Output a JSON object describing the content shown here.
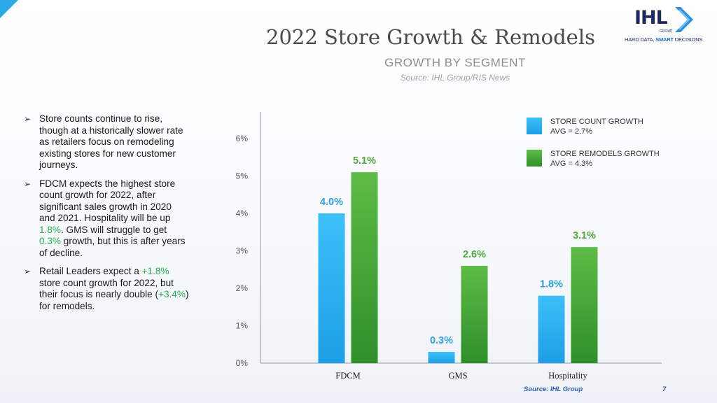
{
  "slide": {
    "title": "2022 Store Growth & Remodels",
    "subtitle": "GROWTH BY SEGMENT",
    "source_top": "Source: IHL Group/RIS News",
    "source_bottom": "Source: IHL Group",
    "page_number": "7"
  },
  "logo": {
    "name": "IHL",
    "group": "GROUP",
    "tagline_part1": "HARD DATA, ",
    "tagline_part2": "SMART",
    "tagline_part3": " DECISIONS",
    "icon": "chevron-arrow-icon"
  },
  "bullets": [
    {
      "segments": [
        {
          "text": "Store counts continue to rise, though at a historically slower rate as retailers focus on remodeling existing stores for new customer journeys.",
          "highlight": false
        }
      ]
    },
    {
      "segments": [
        {
          "text": "FDCM expects the highest store count growth for 2022, after significant sales growth in 2020 and 2021. Hospitality will be up ",
          "highlight": false
        },
        {
          "text": "1.8%",
          "highlight": true
        },
        {
          "text": ". GMS will struggle to get ",
          "highlight": false
        },
        {
          "text": "0.3%",
          "highlight": true
        },
        {
          "text": " growth, but this is after years of decline.",
          "highlight": false
        }
      ]
    },
    {
      "segments": [
        {
          "text": "Retail Leaders expect a ",
          "highlight": false
        },
        {
          "text": "+1.8%",
          "highlight": true
        },
        {
          "text": " store count growth for 2022, but their focus is nearly double (",
          "highlight": false
        },
        {
          "text": "+3.4%",
          "highlight": true
        },
        {
          "text": ") for remodels.",
          "highlight": false
        }
      ]
    }
  ],
  "colors": {
    "store_count": "#2fb6f4",
    "store_remodels": "#4fae3a",
    "highlight": "#22b24c",
    "label_blue": "#2f9fe0",
    "label_green": "#4fa83c"
  },
  "chart_data": {
    "type": "bar",
    "title": "",
    "xlabel": "",
    "ylabel": "",
    "categories": [
      "FDCM",
      "GMS",
      "Hospitality"
    ],
    "series": [
      {
        "name": "STORE COUNT GROWTH",
        "avg_label": "AVG = 2.7%",
        "values": [
          4.0,
          0.3,
          1.8
        ],
        "labels": [
          "4.0%",
          "0.3%",
          "1.8%"
        ]
      },
      {
        "name": "STORE REMODELS GROWTH",
        "avg_label": "AVG = 4.3%",
        "values": [
          5.1,
          2.6,
          3.1
        ],
        "labels": [
          "5.1%",
          "2.6%",
          "3.1%"
        ]
      }
    ],
    "yticks": [
      0,
      1,
      2,
      3,
      4,
      5,
      6
    ],
    "ytick_labels": [
      "0%",
      "1%",
      "2%",
      "3%",
      "4%",
      "5%",
      "6%"
    ],
    "ylim": [
      0,
      6.5
    ],
    "grid": false,
    "legend": "top-right"
  }
}
